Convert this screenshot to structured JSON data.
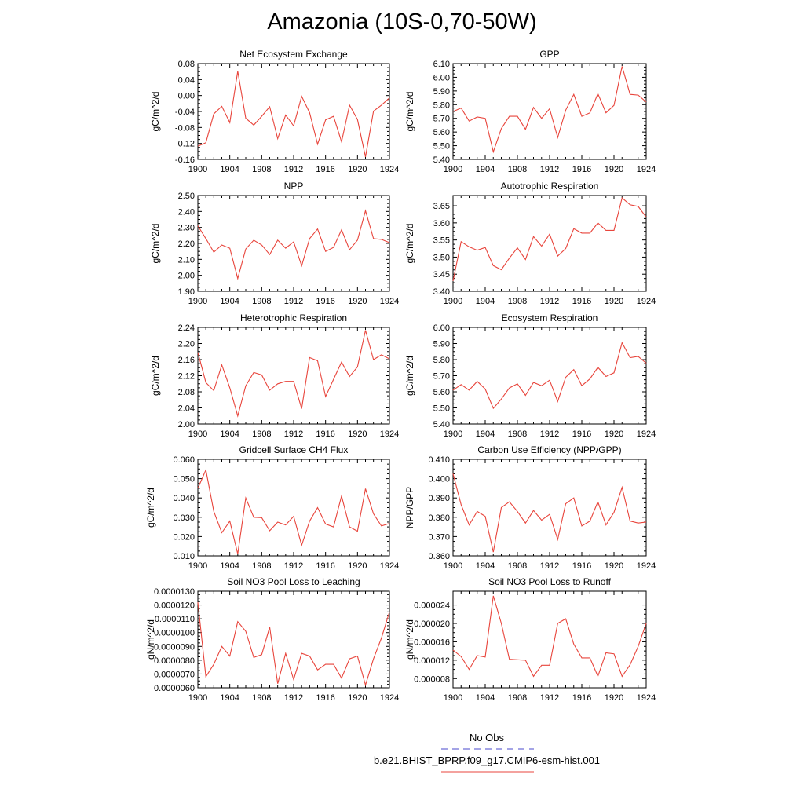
{
  "page_title": "Amazonia (10S-0,70-50W)",
  "legend": [
    {
      "label": "No Obs",
      "color": "#4a4acc",
      "dash": "dashed"
    },
    {
      "label": "b.e21.BHIST_BPRP.f09_g17.CMIP6-esm-hist.001",
      "color": "#e8453c",
      "dash": "solid"
    }
  ],
  "chart_data": [
    {
      "type": "line",
      "title": "Net Ecosystem Exchange",
      "ylabel": "gC/m^2/d",
      "xlim": [
        1900,
        1924
      ],
      "ylim": [
        -0.16,
        0.08
      ],
      "xticks": [
        1900,
        1904,
        1908,
        1912,
        1916,
        1920,
        1924
      ],
      "yticks": [
        "-0.16",
        "-0.12",
        "-0.08",
        "-0.04",
        "0.00",
        "0.04",
        "0.08"
      ],
      "x": [
        1900,
        1901,
        1902,
        1903,
        1904,
        1905,
        1906,
        1907,
        1908,
        1909,
        1910,
        1911,
        1912,
        1913,
        1914,
        1915,
        1916,
        1917,
        1918,
        1919,
        1920,
        1921,
        1922,
        1923,
        1924
      ],
      "series": [
        {
          "values": [
            -0.127,
            -0.118,
            -0.046,
            -0.027,
            -0.068,
            0.061,
            -0.057,
            -0.074,
            -0.052,
            -0.028,
            -0.108,
            -0.049,
            -0.076,
            -0.002,
            -0.043,
            -0.122,
            -0.061,
            -0.052,
            -0.116,
            -0.024,
            -0.06,
            -0.154,
            -0.039,
            -0.024,
            -0.006
          ],
          "color": "#e8453c"
        }
      ]
    },
    {
      "type": "line",
      "title": "GPP",
      "ylabel": "gC/m^2/d",
      "xlim": [
        1900,
        1924
      ],
      "ylim": [
        5.4,
        6.1
      ],
      "xticks": [
        1900,
        1904,
        1908,
        1912,
        1916,
        1920,
        1924
      ],
      "yticks": [
        "5.40",
        "5.50",
        "5.60",
        "5.70",
        "5.80",
        "5.90",
        "6.00",
        "6.10"
      ],
      "x": [
        1900,
        1901,
        1902,
        1903,
        1904,
        1905,
        1906,
        1907,
        1908,
        1909,
        1910,
        1911,
        1912,
        1913,
        1914,
        1915,
        1916,
        1917,
        1918,
        1919,
        1920,
        1921,
        1922,
        1923,
        1924
      ],
      "series": [
        {
          "values": [
            5.75,
            5.775,
            5.68,
            5.71,
            5.7,
            5.455,
            5.625,
            5.715,
            5.715,
            5.62,
            5.78,
            5.7,
            5.77,
            5.56,
            5.76,
            5.875,
            5.715,
            5.74,
            5.88,
            5.74,
            5.795,
            6.08,
            5.875,
            5.87,
            5.82
          ],
          "color": "#e8453c"
        }
      ]
    },
    {
      "type": "line",
      "title": "NPP",
      "ylabel": "gC/m^2/d",
      "xlim": [
        1900,
        1924
      ],
      "ylim": [
        1.9,
        2.5
      ],
      "xticks": [
        1900,
        1904,
        1908,
        1912,
        1916,
        1920,
        1924
      ],
      "yticks": [
        "1.90",
        "2.00",
        "2.10",
        "2.20",
        "2.30",
        "2.40",
        "2.50"
      ],
      "x": [
        1900,
        1901,
        1902,
        1903,
        1904,
        1905,
        1906,
        1907,
        1908,
        1909,
        1910,
        1911,
        1912,
        1913,
        1914,
        1915,
        1916,
        1917,
        1918,
        1919,
        1920,
        1921,
        1922,
        1923,
        1924
      ],
      "series": [
        {
          "values": [
            2.31,
            2.23,
            2.145,
            2.19,
            2.17,
            1.98,
            2.165,
            2.22,
            2.19,
            2.13,
            2.22,
            2.17,
            2.21,
            2.06,
            2.23,
            2.29,
            2.15,
            2.175,
            2.285,
            2.16,
            2.22,
            2.405,
            2.23,
            2.225,
            2.205
          ],
          "color": "#e8453c"
        }
      ]
    },
    {
      "type": "line",
      "title": "Autotrophic Respiration",
      "ylabel": "gC/m^2/d",
      "xlim": [
        1900,
        1924
      ],
      "ylim": [
        3.4,
        3.68
      ],
      "xticks": [
        1900,
        1904,
        1908,
        1912,
        1916,
        1920,
        1924
      ],
      "yticks": [
        "3.40",
        "3.45",
        "3.50",
        "3.55",
        "3.60",
        "3.65"
      ],
      "x": [
        1900,
        1901,
        1902,
        1903,
        1904,
        1905,
        1906,
        1907,
        1908,
        1909,
        1910,
        1911,
        1912,
        1913,
        1914,
        1915,
        1916,
        1917,
        1918,
        1919,
        1920,
        1921,
        1922,
        1923,
        1924
      ],
      "series": [
        {
          "values": [
            3.43,
            3.545,
            3.53,
            3.52,
            3.528,
            3.475,
            3.463,
            3.497,
            3.527,
            3.493,
            3.56,
            3.532,
            3.567,
            3.503,
            3.525,
            3.583,
            3.57,
            3.57,
            3.6,
            3.578,
            3.578,
            3.673,
            3.653,
            3.648,
            3.617
          ],
          "color": "#e8453c"
        }
      ]
    },
    {
      "type": "line",
      "title": "Heterotrophic Respiration",
      "ylabel": "gC/m^2/d",
      "xlim": [
        1900,
        1924
      ],
      "ylim": [
        2.0,
        2.24
      ],
      "xticks": [
        1900,
        1904,
        1908,
        1912,
        1916,
        1920,
        1924
      ],
      "yticks": [
        "2.00",
        "2.04",
        "2.08",
        "2.12",
        "2.16",
        "2.20",
        "2.24"
      ],
      "x": [
        1900,
        1901,
        1902,
        1903,
        1904,
        1905,
        1906,
        1907,
        1908,
        1909,
        1910,
        1911,
        1912,
        1913,
        1914,
        1915,
        1916,
        1917,
        1918,
        1919,
        1920,
        1921,
        1922,
        1923,
        1924
      ],
      "series": [
        {
          "values": [
            2.178,
            2.103,
            2.083,
            2.147,
            2.09,
            2.02,
            2.095,
            2.128,
            2.122,
            2.084,
            2.1,
            2.106,
            2.106,
            2.038,
            2.165,
            2.157,
            2.068,
            2.111,
            2.154,
            2.118,
            2.142,
            2.233,
            2.16,
            2.172,
            2.162
          ],
          "color": "#e8453c"
        }
      ]
    },
    {
      "type": "line",
      "title": "Ecosystem Respiration",
      "ylabel": "gC/m^2/d",
      "xlim": [
        1900,
        1924
      ],
      "ylim": [
        5.4,
        6.0
      ],
      "xticks": [
        1900,
        1904,
        1908,
        1912,
        1916,
        1920,
        1924
      ],
      "yticks": [
        "5.40",
        "5.50",
        "5.60",
        "5.70",
        "5.80",
        "5.90",
        "6.00"
      ],
      "x": [
        1900,
        1901,
        1902,
        1903,
        1904,
        1905,
        1906,
        1907,
        1908,
        1909,
        1910,
        1911,
        1912,
        1913,
        1914,
        1915,
        1916,
        1917,
        1918,
        1919,
        1920,
        1921,
        1922,
        1923,
        1924
      ],
      "series": [
        {
          "values": [
            5.61,
            5.645,
            5.61,
            5.665,
            5.617,
            5.497,
            5.555,
            5.624,
            5.65,
            5.578,
            5.658,
            5.638,
            5.672,
            5.54,
            5.69,
            5.738,
            5.638,
            5.68,
            5.752,
            5.695,
            5.718,
            5.905,
            5.812,
            5.82,
            5.778
          ],
          "color": "#e8453c"
        }
      ]
    },
    {
      "type": "line",
      "title": "Gridcell Surface CH4 Flux",
      "ylabel": "gC/m^2/d",
      "xlim": [
        1900,
        1924
      ],
      "ylim": [
        0.01,
        0.06
      ],
      "xticks": [
        1900,
        1904,
        1908,
        1912,
        1916,
        1920,
        1924
      ],
      "yticks": [
        "0.010",
        "0.020",
        "0.030",
        "0.040",
        "0.050",
        "0.060"
      ],
      "x": [
        1900,
        1901,
        1902,
        1903,
        1904,
        1905,
        1906,
        1907,
        1908,
        1909,
        1910,
        1911,
        1912,
        1913,
        1914,
        1915,
        1916,
        1917,
        1918,
        1919,
        1920,
        1921,
        1922,
        1923,
        1924
      ],
      "series": [
        {
          "values": [
            0.045,
            0.0545,
            0.033,
            0.022,
            0.028,
            0.011,
            0.04,
            0.03,
            0.0298,
            0.023,
            0.0275,
            0.026,
            0.0305,
            0.0155,
            0.028,
            0.035,
            0.0265,
            0.025,
            0.041,
            0.025,
            0.0228,
            0.0448,
            0.0318,
            0.0255,
            0.0268
          ],
          "color": "#e8453c"
        }
      ]
    },
    {
      "type": "line",
      "title": "Carbon Use Efficiency (NPP/GPP)",
      "ylabel": "NPP/GPP",
      "xlim": [
        1900,
        1924
      ],
      "ylim": [
        0.36,
        0.41
      ],
      "xticks": [
        1900,
        1904,
        1908,
        1912,
        1916,
        1920,
        1924
      ],
      "yticks": [
        "0.360",
        "0.370",
        "0.380",
        "0.390",
        "0.400",
        "0.410"
      ],
      "x": [
        1900,
        1901,
        1902,
        1903,
        1904,
        1905,
        1906,
        1907,
        1908,
        1909,
        1910,
        1911,
        1912,
        1913,
        1914,
        1915,
        1916,
        1917,
        1918,
        1919,
        1920,
        1921,
        1922,
        1923,
        1924
      ],
      "series": [
        {
          "values": [
            0.4025,
            0.3865,
            0.376,
            0.383,
            0.3805,
            0.362,
            0.385,
            0.388,
            0.383,
            0.377,
            0.3835,
            0.3785,
            0.3815,
            0.3685,
            0.387,
            0.39,
            0.3755,
            0.378,
            0.388,
            0.376,
            0.3825,
            0.3955,
            0.378,
            0.377,
            0.3775
          ],
          "color": "#e8453c"
        }
      ]
    },
    {
      "type": "line",
      "title": "Soil NO3 Pool Loss to Leaching",
      "ylabel": "gN/m^2/d",
      "xlim": [
        1900,
        1924
      ],
      "ylim": [
        6e-06,
        1.3e-05
      ],
      "xticks": [
        1900,
        1904,
        1908,
        1912,
        1916,
        1920,
        1924
      ],
      "yticks": [
        "0.0000060",
        "0.0000070",
        "0.0000080",
        "0.0000090",
        "0.0000100",
        "0.0000110",
        "0.0000120",
        "0.0000130"
      ],
      "x": [
        1900,
        1901,
        1902,
        1903,
        1904,
        1905,
        1906,
        1907,
        1908,
        1909,
        1910,
        1911,
        1912,
        1913,
        1914,
        1915,
        1916,
        1917,
        1918,
        1919,
        1920,
        1921,
        1922,
        1923,
        1924
      ],
      "series": [
        {
          "values": [
            1.22e-05,
            6.8e-06,
            7.7e-06,
            9e-06,
            8.3e-06,
            1.08e-05,
            1.01e-05,
            8.2e-06,
            8.4e-06,
            1.04e-05,
            6.3e-06,
            8.5e-06,
            6.6e-06,
            8.5e-06,
            8.3e-06,
            7.3e-06,
            7.7e-06,
            7.7e-06,
            6.7e-06,
            8.1e-06,
            8.3e-06,
            6.2e-06,
            8.1e-06,
            9.6e-06,
            1.15e-05
          ],
          "color": "#e8453c"
        }
      ]
    },
    {
      "type": "line",
      "title": "Soil NO3 Pool Loss to Runoff",
      "ylabel": "gN/m^2/d",
      "xlim": [
        1900,
        1924
      ],
      "ylim": [
        6e-06,
        2.7e-05
      ],
      "xticks": [
        1900,
        1904,
        1908,
        1912,
        1916,
        1920,
        1924
      ],
      "yticks": [
        "0.000008",
        "0.000012",
        "0.000016",
        "0.000020",
        "0.000024"
      ],
      "ytickvals": [
        8e-06,
        1.2e-05,
        1.6e-05,
        2e-05,
        2.4e-05
      ],
      "x": [
        1900,
        1901,
        1902,
        1903,
        1904,
        1905,
        1906,
        1907,
        1908,
        1909,
        1910,
        1911,
        1912,
        1913,
        1914,
        1915,
        1916,
        1917,
        1918,
        1919,
        1920,
        1921,
        1922,
        1923,
        1924
      ],
      "series": [
        {
          "values": [
            1.42e-05,
            1.28e-05,
            1e-05,
            1.3e-05,
            1.27e-05,
            2.6e-05,
            2e-05,
            1.22e-05,
            1.21e-05,
            1.2e-05,
            8.5e-06,
            1.09e-05,
            1.09e-05,
            2e-05,
            2.1e-05,
            1.55e-05,
            1.25e-05,
            1.25e-05,
            8.5e-06,
            1.36e-05,
            1.34e-05,
            8.5e-06,
            1.1e-05,
            1.5e-05,
            2e-05
          ],
          "color": "#e8453c"
        }
      ]
    }
  ]
}
